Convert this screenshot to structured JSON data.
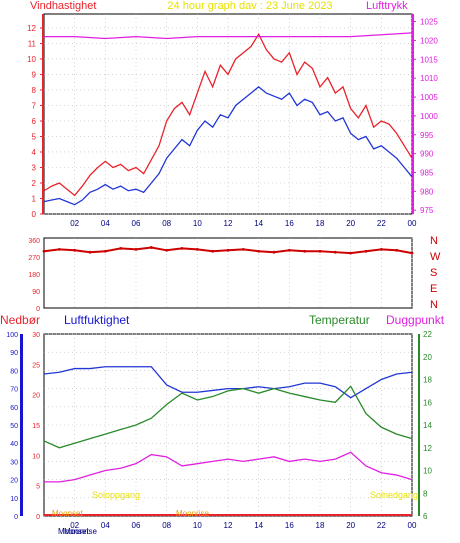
{
  "header": {
    "title": "24 hour graph dav : 23 June 2023",
    "left_label": "Vindhastighet",
    "right_label": "Lufttrykk"
  },
  "labels": {
    "nedbor": "Nedbør",
    "luftfuktighet": "Luftfuktighet",
    "temperatur": "Temperatur",
    "duggpunkt": "Duggpunkt",
    "solnedgang": "Solnedgang",
    "soloppgang": "Soloppgang",
    "moonset": "Moonset",
    "moonrise": "Moonrise"
  },
  "colors": {
    "wind": "#e8232b",
    "wind_avg": "#2236d6",
    "pressure": "#e020e0",
    "direction": "#cc0000",
    "humidity": "#2236d6",
    "temperature": "#2a8a2a",
    "dewpoint": "#e020e0",
    "axis_blue": "#1515d0",
    "axis_green": "#2a8a2a",
    "sun": "#e8e000",
    "moon": "#e8a000",
    "precip": "#e8232b"
  },
  "chart_data": [
    {
      "type": "line",
      "name": "wind_pressure",
      "x_ticks": [
        "02",
        "04",
        "06",
        "08",
        "10",
        "12",
        "14",
        "16",
        "18",
        "20",
        "22",
        "00"
      ],
      "y_left_ticks": [
        0,
        1,
        2,
        3,
        4,
        5,
        6,
        7,
        8,
        9,
        10,
        11,
        12
      ],
      "y_right_ticks": [
        975,
        980,
        985,
        990,
        995,
        1000,
        1005,
        1010,
        1015,
        1020,
        1025
      ],
      "ylim_left": [
        0,
        12.9
      ],
      "ylim_right": [
        974,
        1027
      ],
      "series": [
        {
          "key": "gust",
          "x": [
            0,
            0.5,
            1,
            1.5,
            2,
            2.5,
            3,
            3.5,
            4,
            4.5,
            5,
            5.5,
            6,
            6.5,
            7,
            7.5,
            8,
            8.5,
            9,
            9.5,
            10,
            10.5,
            11,
            11.5,
            12,
            12.5,
            13,
            13.5,
            14,
            14.5,
            15,
            15.5,
            16,
            16.5,
            17,
            17.5,
            18,
            18.5,
            19,
            19.5,
            20,
            20.5,
            21,
            21.5,
            22,
            22.5,
            23,
            23.5,
            24
          ],
          "y": [
            1.5,
            1.8,
            2.0,
            1.6,
            1.2,
            1.8,
            2.5,
            3.0,
            3.4,
            3.0,
            3.2,
            2.8,
            3.0,
            2.6,
            3.5,
            4.4,
            6.0,
            6.8,
            7.2,
            6.4,
            7.8,
            9.2,
            8.2,
            9.6,
            9.0,
            10.0,
            10.4,
            10.8,
            11.6,
            10.6,
            10.0,
            9.8,
            10.4,
            9.0,
            9.8,
            9.4,
            8.2,
            8.8,
            7.8,
            8.2,
            6.8,
            6.2,
            7.0,
            5.6,
            6.0,
            5.8,
            5.2,
            4.4,
            3.6
          ]
        },
        {
          "key": "avg",
          "x": [
            0,
            0.5,
            1,
            1.5,
            2,
            2.5,
            3,
            3.5,
            4,
            4.5,
            5,
            5.5,
            6,
            6.5,
            7,
            7.5,
            8,
            8.5,
            9,
            9.5,
            10,
            10.5,
            11,
            11.5,
            12,
            12.5,
            13,
            13.5,
            14,
            14.5,
            15,
            15.5,
            16,
            16.5,
            17,
            17.5,
            18,
            18.5,
            19,
            19.5,
            20,
            20.5,
            21,
            21.5,
            22,
            22.5,
            23,
            23.5,
            24
          ],
          "y": [
            0.8,
            0.9,
            1.0,
            0.8,
            0.6,
            0.9,
            1.4,
            1.6,
            1.9,
            1.6,
            1.8,
            1.5,
            1.6,
            1.4,
            2.0,
            2.6,
            3.6,
            4.2,
            4.8,
            4.4,
            5.4,
            6.0,
            5.6,
            6.4,
            6.2,
            7.0,
            7.4,
            7.8,
            8.2,
            7.8,
            7.6,
            7.4,
            7.8,
            7.0,
            7.4,
            7.2,
            6.4,
            6.6,
            6.0,
            6.2,
            5.2,
            4.8,
            5.0,
            4.2,
            4.4,
            4.0,
            3.6,
            3.0,
            2.4
          ]
        },
        {
          "key": "pressure",
          "x": [
            0,
            2,
            4,
            6,
            8,
            10,
            12,
            14,
            16,
            18,
            20,
            22,
            24
          ],
          "y": [
            1021,
            1021,
            1020.5,
            1021,
            1020.5,
            1021,
            1021,
            1021,
            1021,
            1021,
            1021,
            1021.5,
            1022
          ]
        }
      ]
    },
    {
      "type": "scatter",
      "name": "wind_direction",
      "y_ticks": [
        0,
        90,
        180,
        270,
        360
      ],
      "compass": [
        "N",
        "W",
        "S",
        "E",
        "N"
      ],
      "ylim": [
        0,
        370
      ],
      "x": [
        0,
        1,
        2,
        3,
        4,
        5,
        6,
        7,
        8,
        9,
        10,
        11,
        12,
        13,
        14,
        15,
        16,
        17,
        18,
        19,
        20,
        21,
        22,
        23,
        24
      ],
      "y": [
        300,
        310,
        305,
        295,
        300,
        315,
        310,
        320,
        305,
        315,
        310,
        300,
        305,
        310,
        300,
        295,
        305,
        300,
        300,
        295,
        290,
        300,
        310,
        305,
        290
      ]
    },
    {
      "type": "line",
      "name": "humidity_temperature",
      "y_left_ticks": [
        0,
        10,
        20,
        30,
        40,
        50,
        60,
        70,
        80,
        90,
        100
      ],
      "y_precip_ticks": [
        0,
        5,
        10,
        15,
        20,
        25,
        30
      ],
      "y_right_ticks": [
        6,
        8,
        10,
        12,
        14,
        16,
        18,
        20,
        22
      ],
      "ylim_left": [
        0,
        100
      ],
      "ylim_right": [
        6,
        22
      ],
      "series": [
        {
          "key": "humidity",
          "x": [
            0,
            1,
            2,
            3,
            4,
            5,
            6,
            7,
            8,
            9,
            10,
            11,
            12,
            13,
            14,
            15,
            16,
            17,
            18,
            19,
            20,
            21,
            22,
            23,
            24
          ],
          "y": [
            78,
            79,
            81,
            81,
            82,
            82,
            82,
            82,
            72,
            68,
            68,
            69,
            70,
            70,
            71,
            70,
            71,
            73,
            73,
            71,
            65,
            70,
            75,
            78,
            79
          ]
        },
        {
          "key": "temperature",
          "x": [
            0,
            1,
            2,
            3,
            4,
            5,
            6,
            7,
            8,
            9,
            10,
            11,
            12,
            13,
            14,
            15,
            16,
            17,
            18,
            19,
            20,
            21,
            22,
            23,
            24
          ],
          "y": [
            12.6,
            12.0,
            12.4,
            12.8,
            13.2,
            13.6,
            14.0,
            14.6,
            15.8,
            16.8,
            16.2,
            16.5,
            17.0,
            17.2,
            16.8,
            17.2,
            16.8,
            16.5,
            16.2,
            16.0,
            17.4,
            15.0,
            13.8,
            13.2,
            12.8
          ]
        },
        {
          "key": "dewpoint",
          "x": [
            0,
            1,
            2,
            3,
            4,
            5,
            6,
            7,
            8,
            9,
            10,
            11,
            12,
            13,
            14,
            15,
            16,
            17,
            18,
            19,
            20,
            21,
            22,
            23,
            24
          ],
          "y": [
            9.0,
            9.0,
            9.2,
            9.6,
            10.0,
            10.2,
            10.6,
            11.4,
            11.2,
            10.4,
            10.6,
            10.8,
            11.0,
            10.8,
            11.0,
            11.2,
            10.8,
            11.0,
            10.8,
            11.0,
            11.6,
            10.4,
            9.8,
            9.6,
            9.2
          ]
        }
      ]
    }
  ]
}
